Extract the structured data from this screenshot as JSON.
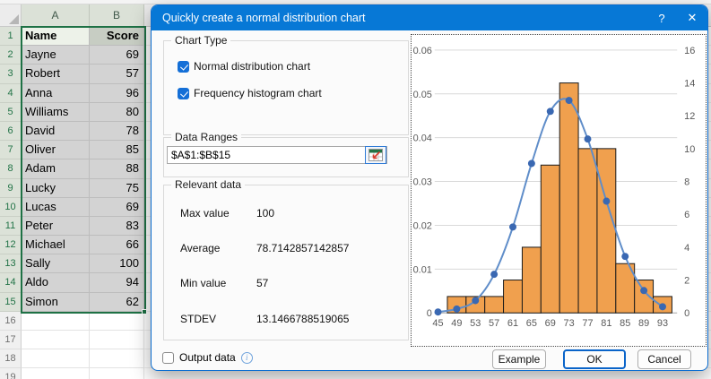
{
  "colors": {
    "titlebar": "#0778d6",
    "accent": "#146fd7",
    "selection": "#1e7145",
    "bar_fill": "#f0a04e",
    "bar_stroke": "#1a1a1a",
    "line": "#5f8dc9",
    "marker": "#3a68b2",
    "grid": "#d9d9d9",
    "axis_text": "#595959"
  },
  "spreadsheet": {
    "col_headers": [
      "A",
      "B"
    ],
    "rows": [
      {
        "num": "1",
        "name": "Name",
        "score": "Score"
      },
      {
        "num": "2",
        "name": "Jayne",
        "score": "69"
      },
      {
        "num": "3",
        "name": "Robert",
        "score": "57"
      },
      {
        "num": "4",
        "name": "Anna",
        "score": "96"
      },
      {
        "num": "5",
        "name": "Williams",
        "score": "80"
      },
      {
        "num": "6",
        "name": "David",
        "score": "78"
      },
      {
        "num": "7",
        "name": "Oliver",
        "score": "85"
      },
      {
        "num": "8",
        "name": "Adam",
        "score": "88"
      },
      {
        "num": "9",
        "name": "Lucky",
        "score": "75"
      },
      {
        "num": "10",
        "name": "Lucas",
        "score": "69"
      },
      {
        "num": "11",
        "name": "Peter",
        "score": "83"
      },
      {
        "num": "12",
        "name": "Michael",
        "score": "66"
      },
      {
        "num": "13",
        "name": "Sally",
        "score": "100"
      },
      {
        "num": "14",
        "name": "Aldo",
        "score": "94"
      },
      {
        "num": "15",
        "name": "Simon",
        "score": "62"
      },
      {
        "num": "16",
        "name": "",
        "score": ""
      },
      {
        "num": "17",
        "name": "",
        "score": ""
      },
      {
        "num": "18",
        "name": "",
        "score": ""
      },
      {
        "num": "19",
        "name": "",
        "score": ""
      }
    ],
    "selected_range": "A1:B15"
  },
  "dialog": {
    "title": "Quickly create a normal distribution chart",
    "icons": {
      "help": "?",
      "close": "✕",
      "info": "i",
      "range_picker": "range-picker-grid-with-red-arrow"
    },
    "chart_type": {
      "legend": "Chart Type",
      "options": [
        {
          "label": "Normal distribution chart",
          "checked": true
        },
        {
          "label": "Frequency histogram chart",
          "checked": true
        }
      ]
    },
    "data_ranges": {
      "legend": "Data Ranges",
      "value": "$A$1:$B$15"
    },
    "relevant_data": {
      "legend": "Relevant data",
      "stats": [
        {
          "label": "Max value",
          "value": "100"
        },
        {
          "label": "Average",
          "value": "78.7142857142857"
        },
        {
          "label": "Min value",
          "value": "57"
        },
        {
          "label": "STDEV",
          "value": "13.1466788519065"
        }
      ]
    },
    "output_data": {
      "label": "Output data",
      "checked": false
    },
    "buttons": [
      {
        "label": "Example",
        "default": false
      },
      {
        "label": "OK",
        "default": true
      },
      {
        "label": "Cancel",
        "default": false
      }
    ]
  },
  "chart_data": {
    "type": "combo-histogram-with-normal-curve",
    "title": "",
    "x_tick_labels": [
      "45",
      "49",
      "53",
      "57",
      "61",
      "65",
      "69",
      "73",
      "77",
      "81",
      "85",
      "89",
      "93"
    ],
    "left_axis": {
      "min": 0,
      "max": 0.06,
      "ticks": [
        "0",
        "0.01",
        "0.02",
        "0.03",
        "0.04",
        "0.05",
        "0.06"
      ]
    },
    "right_axis": {
      "min": 0,
      "max": 16,
      "ticks": [
        "0",
        "2",
        "4",
        "6",
        "8",
        "10",
        "12",
        "14",
        "16"
      ]
    },
    "grid": true,
    "legend_position": "none",
    "series": [
      {
        "name": "Frequency histogram chart",
        "type": "bar",
        "axis": "right",
        "bin_centers": [
          49,
          53,
          57,
          61,
          65,
          69,
          73,
          77,
          81,
          85,
          89,
          93
        ],
        "values": [
          1,
          1,
          1,
          2,
          4,
          9,
          14,
          10,
          10,
          3,
          2,
          1
        ]
      },
      {
        "name": "Normal distribution chart",
        "type": "line",
        "axis": "left",
        "x": [
          45,
          49,
          53,
          57,
          61,
          65,
          69,
          73,
          77,
          81,
          85,
          89,
          93
        ],
        "values": [
          0.0002,
          0.0009,
          0.0028,
          0.0088,
          0.0196,
          0.0341,
          0.046,
          0.0485,
          0.0397,
          0.0255,
          0.0129,
          0.0051,
          0.0014
        ]
      }
    ]
  }
}
